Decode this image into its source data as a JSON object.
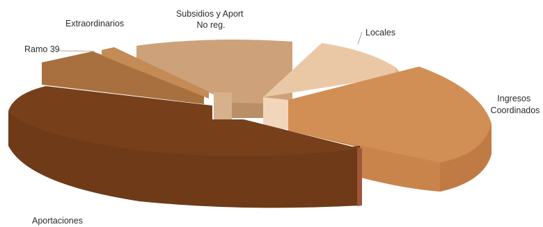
{
  "chart_data": {
    "type": "pie",
    "variant": "3d-exploded",
    "title": "",
    "slices": [
      {
        "label": [
          "Subsidios y Aport",
          "No reg."
        ],
        "value": 14.0,
        "color": "#CDA27A"
      },
      {
        "label": [
          "Locales"
        ],
        "value": 6.0,
        "color": "#EBC8A5"
      },
      {
        "label": [
          "Ingresos",
          "Coordinados"
        ],
        "value": 25.0,
        "color": "#D28F55"
      },
      {
        "label": [
          "Aportaciones"
        ],
        "value": 44.0,
        "color": "#77401B"
      },
      {
        "label": [
          "Ramo 39"
        ],
        "value": 9.0,
        "color": "#A8703F"
      },
      {
        "label": [
          "Extraordinarios"
        ],
        "value": 2.0,
        "color": "#C48B56"
      }
    ]
  }
}
